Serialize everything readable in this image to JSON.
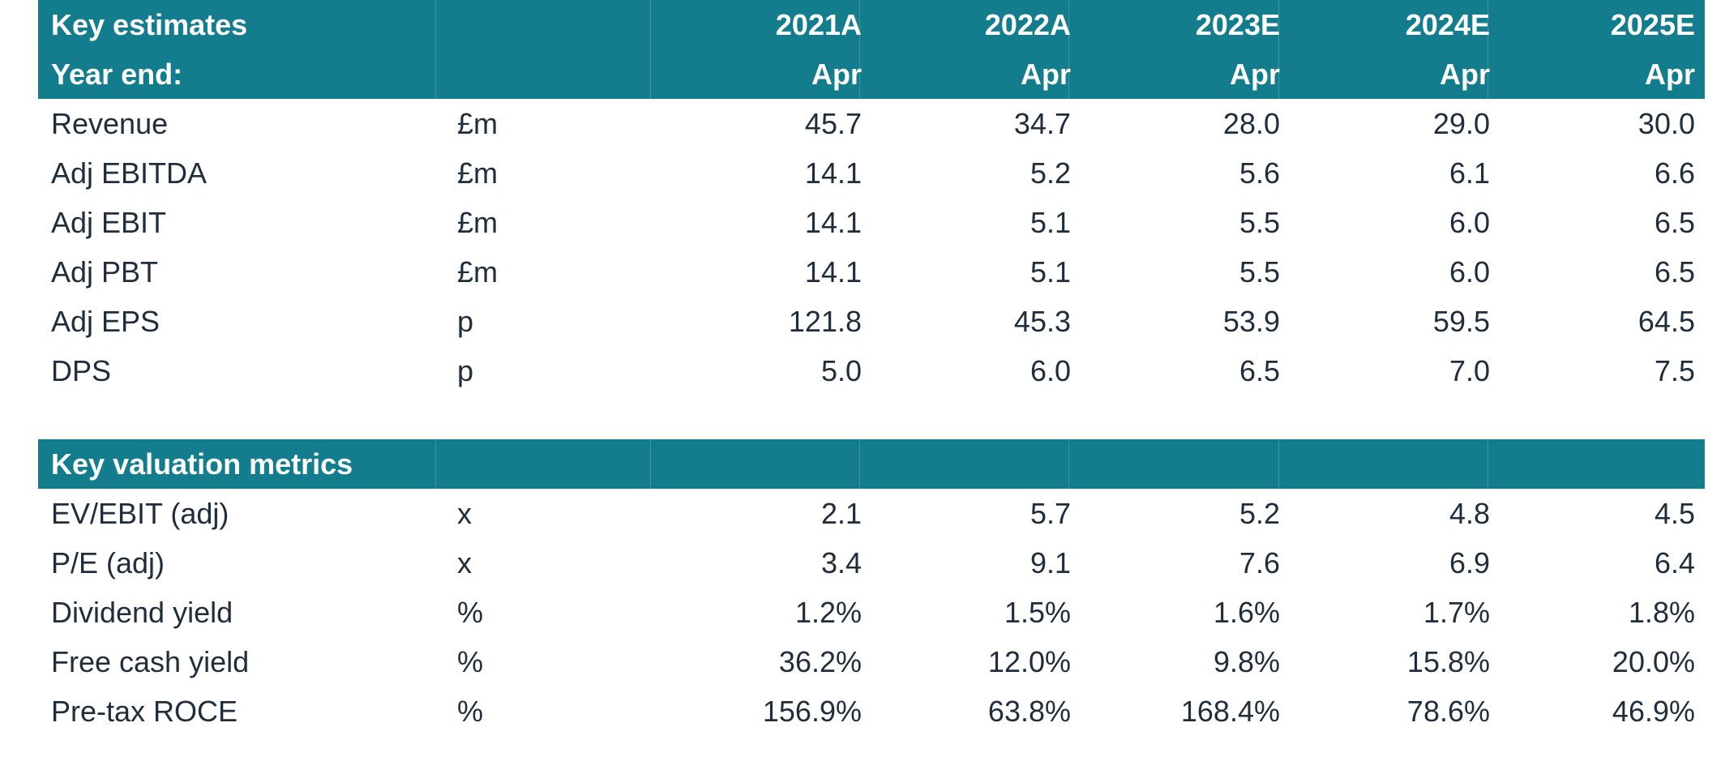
{
  "estimates": {
    "title": "Key estimates",
    "years": [
      "2021A",
      "2022A",
      "2023E",
      "2024E",
      "2025E"
    ],
    "year_end_label": "Year end:",
    "year_end_months": [
      "Apr",
      "Apr",
      "Apr",
      "Apr",
      "Apr"
    ],
    "rows": [
      {
        "label": "Revenue",
        "unit": "£m",
        "values": [
          "45.7",
          "34.7",
          "28.0",
          "29.0",
          "30.0"
        ]
      },
      {
        "label": "Adj EBITDA",
        "unit": "£m",
        "values": [
          "14.1",
          "5.2",
          "5.6",
          "6.1",
          "6.6"
        ]
      },
      {
        "label": "Adj EBIT",
        "unit": "£m",
        "values": [
          "14.1",
          "5.1",
          "5.5",
          "6.0",
          "6.5"
        ]
      },
      {
        "label": "Adj PBT",
        "unit": "£m",
        "values": [
          "14.1",
          "5.1",
          "5.5",
          "6.0",
          "6.5"
        ]
      },
      {
        "label": "Adj EPS",
        "unit": "p",
        "values": [
          "121.8",
          "45.3",
          "53.9",
          "59.5",
          "64.5"
        ]
      },
      {
        "label": "DPS",
        "unit": "p",
        "values": [
          "5.0",
          "6.0",
          "6.5",
          "7.0",
          "7.5"
        ]
      }
    ]
  },
  "valuation": {
    "title": "Key valuation metrics",
    "rows": [
      {
        "label": "EV/EBIT (adj)",
        "unit": "x",
        "values": [
          "2.1",
          "5.7",
          "5.2",
          "4.8",
          "4.5"
        ]
      },
      {
        "label": "P/E (adj)",
        "unit": "x",
        "values": [
          "3.4",
          "9.1",
          "7.6",
          "6.9",
          "6.4"
        ]
      },
      {
        "label": "Dividend yield",
        "unit": "%",
        "values": [
          "1.2%",
          "1.5%",
          "1.6%",
          "1.7%",
          "1.8%"
        ]
      },
      {
        "label": "Free cash yield",
        "unit": "%",
        "values": [
          "36.2%",
          "12.0%",
          "9.8%",
          "15.8%",
          "20.0%"
        ]
      },
      {
        "label": "Pre-tax ROCE",
        "unit": "%",
        "values": [
          "156.9%",
          "63.8%",
          "168.4%",
          "78.6%",
          "46.9%"
        ]
      }
    ]
  },
  "colors": {
    "header_bg": "#137d8d",
    "header_text": "#ffffff",
    "body_text": "#1f2d3d"
  }
}
